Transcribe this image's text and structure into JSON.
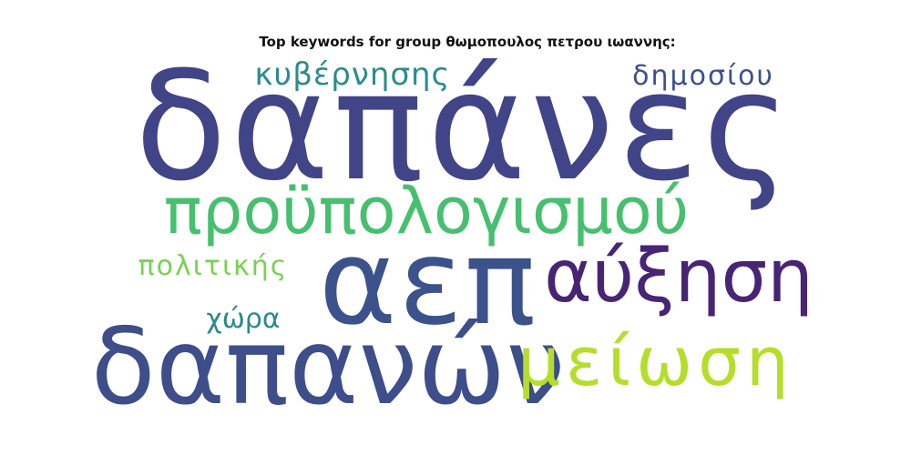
{
  "chart_data": {
    "type": "wordcloud",
    "title": "Top keywords for group θωμοπουλος πετρου ιωαννης:",
    "words": [
      {
        "text": "δαπάνες",
        "weight": 1.0,
        "color": "#414487"
      },
      {
        "text": "αεπ",
        "weight": 0.88,
        "color": "#3b528b"
      },
      {
        "text": "δαπανών",
        "weight": 0.7,
        "color": "#3d4e8a"
      },
      {
        "text": "αύξηση",
        "weight": 0.46,
        "color": "#482475"
      },
      {
        "text": "μείωση",
        "weight": 0.4,
        "color": "#b5de2b"
      },
      {
        "text": "προϋπολογισμού",
        "weight": 0.46,
        "color": "#46c06f"
      },
      {
        "text": "κυβέρνησης",
        "weight": 0.22,
        "color": "#2c8c8d"
      },
      {
        "text": "δημοσίου",
        "weight": 0.2,
        "color": "#3b528b"
      },
      {
        "text": "πολιτικής",
        "weight": 0.2,
        "color": "#7ad151"
      },
      {
        "text": "χώρα",
        "weight": 0.2,
        "color": "#2a8a8c"
      }
    ]
  }
}
